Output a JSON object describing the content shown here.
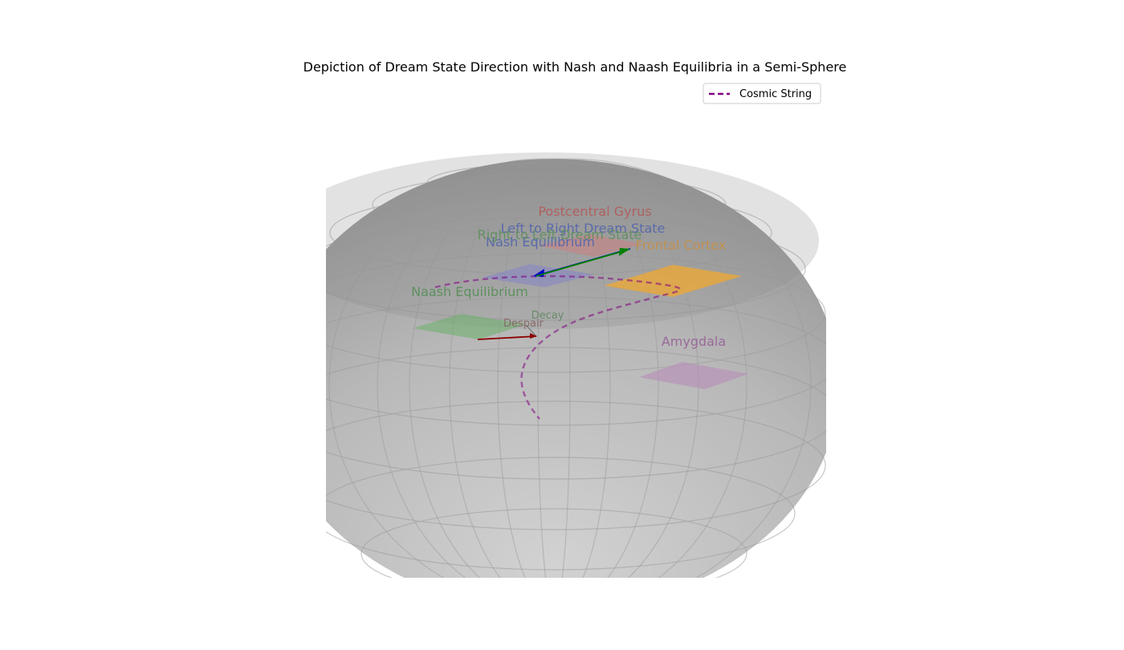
{
  "chart_data": {
    "type": "3d-surface",
    "title": "Depiction of Dream State Direction with Nash and Naash Equilibria in a Semi-Sphere",
    "surface": {
      "shape": "semi-sphere",
      "color": "#a9a9a9"
    },
    "legend": {
      "placement": "top-right",
      "entries": [
        {
          "label": "Cosmic String",
          "color": "#800080",
          "style": "dashed"
        }
      ]
    },
    "regions": [
      {
        "name": "Postcentral Gyrus",
        "color": "#cd7f7f"
      },
      {
        "name": "Frontal Cortex",
        "color": "#f0a830"
      },
      {
        "name": "Nash Equilibrium",
        "color": "#8585c8"
      },
      {
        "name": "Naash Equilibrium",
        "color": "#6fb06f"
      },
      {
        "name": "Amygdala",
        "color": "#b88cb8"
      }
    ],
    "vectors": [
      {
        "label": "Left to Right Dream State",
        "color": "#0000cc",
        "label_color": "#5a6aaa"
      },
      {
        "label": "Right to Left Dream State",
        "color": "#008000",
        "label_color": "#5e8f5e"
      },
      {
        "label": "Decay",
        "color": "#808080",
        "label_color": "#6a8a6a"
      },
      {
        "label": "Despair",
        "color": "#8b0000",
        "label_color": "#8a6a6a"
      }
    ],
    "cosmic_string": {
      "name": "Cosmic String",
      "color": "#800080",
      "style": "dashed"
    }
  }
}
